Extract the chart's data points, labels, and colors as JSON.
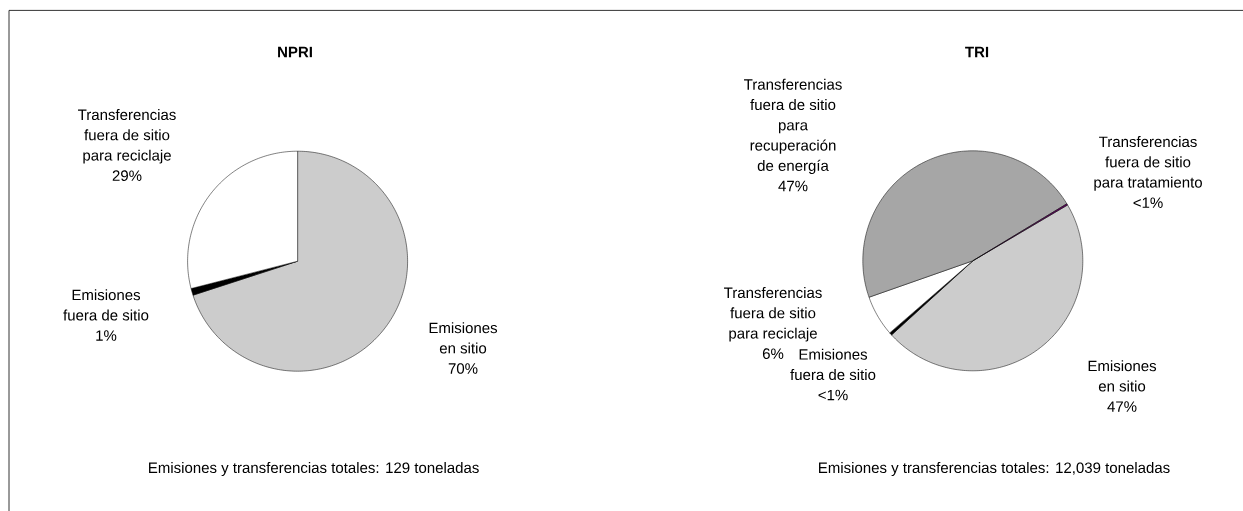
{
  "chart_data": [
    {
      "type": "pie",
      "title": "NPRI",
      "categories": [
        "Emisiones en sitio",
        "Emisiones fuera de sitio",
        "Transferencias fuera de sitio para reciclaje"
      ],
      "values": [
        70,
        1,
        29
      ],
      "colors": [
        "#cccccc",
        "#000000",
        "#ffffff"
      ],
      "value_labels": [
        "70%",
        "1%",
        "29%"
      ],
      "annotations": [
        "Emisiones y transferencias totales: 129 toneladas"
      ]
    },
    {
      "type": "pie",
      "title": "TRI",
      "categories": [
        "Emisiones en sitio",
        "Emisiones fuera de sitio",
        "Transferencias fuera de sitio para reciclaje",
        "Transferencias fuera de sitio para recuperación de energía",
        "Transferencias fuera de sitio para tratamiento"
      ],
      "values": [
        46.7,
        0.4,
        6,
        46.7,
        0.2
      ],
      "colors": [
        "#cccccc",
        "#000000",
        "#ffffff",
        "#a6a6a6",
        "#660066"
      ],
      "value_labels": [
        "47%",
        "<1%",
        "6%",
        "47%",
        "<1%"
      ],
      "annotations": [
        "Emisiones y transferencias totales: 12,039 toneladas"
      ]
    }
  ]
}
